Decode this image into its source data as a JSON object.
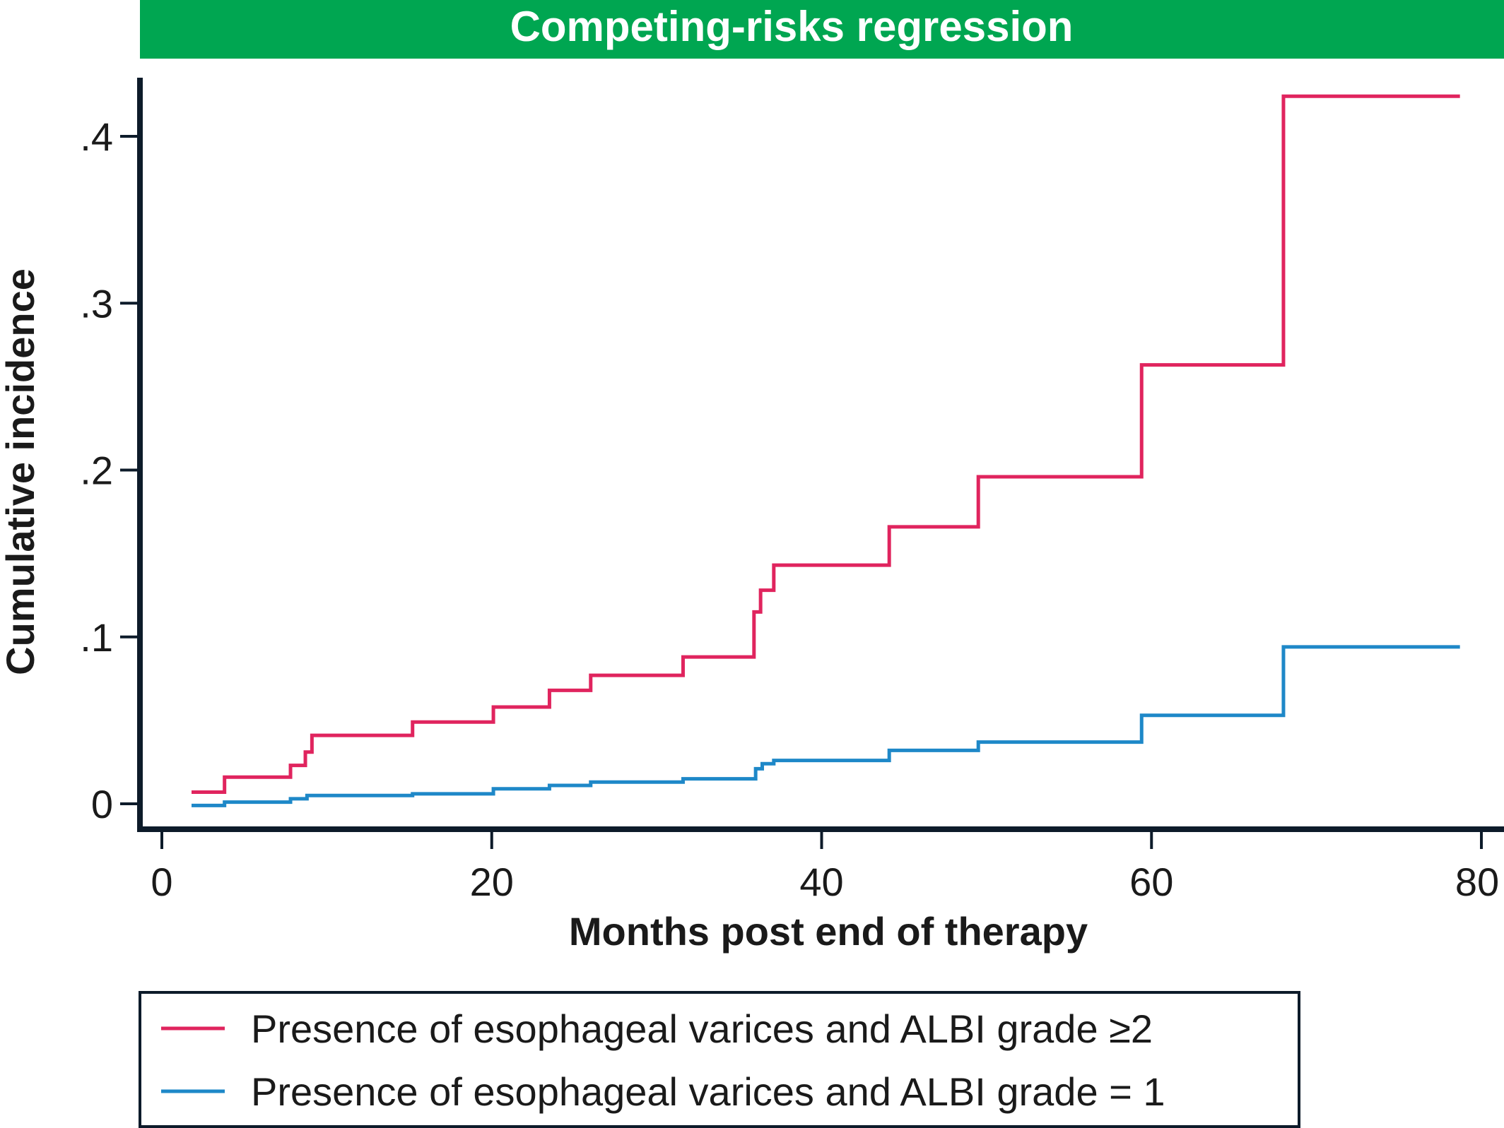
{
  "colors": {
    "banner": "#00a651",
    "axis": "#0d1b2a",
    "series_high": "#e0245e",
    "series_low": "#1e88c8"
  },
  "chart_data": {
    "type": "line",
    "title": "Competing-risks regression",
    "xlabel": "Months post end of therapy",
    "ylabel": "Cumulative incidence",
    "xlim": [
      0,
      80
    ],
    "ylim": [
      0,
      0.43
    ],
    "x_ticks": [
      0,
      20,
      40,
      60,
      80
    ],
    "x_tick_labels": [
      "0",
      "20",
      "40",
      "60",
      "80"
    ],
    "y_ticks": [
      0,
      0.1,
      0.2,
      0.3,
      0.4
    ],
    "y_tick_labels": [
      "0",
      ".1",
      ".2",
      ".3",
      ".4"
    ],
    "step": true,
    "legend_position": "bottom",
    "series": [
      {
        "name": "Presence of esophageal varices and ALBI grade ≥2",
        "color": "#e0245e",
        "x": [
          1.8,
          3.8,
          7.8,
          8.7,
          9.1,
          15.2,
          20.1,
          23.5,
          26.0,
          31.6,
          35.9,
          36.3,
          37.1,
          44.1,
          49.5,
          59.4,
          68.0,
          78.7
        ],
        "y": [
          0.007,
          0.016,
          0.023,
          0.031,
          0.041,
          0.049,
          0.058,
          0.068,
          0.077,
          0.088,
          0.115,
          0.128,
          0.143,
          0.166,
          0.196,
          0.263,
          0.424,
          0.424
        ]
      },
      {
        "name": "Presence of esophageal varices and ALBI grade = 1",
        "color": "#1e88c8",
        "x": [
          1.8,
          3.8,
          7.8,
          8.8,
          15.2,
          20.1,
          23.5,
          26.0,
          31.6,
          36.0,
          36.4,
          37.1,
          44.1,
          49.5,
          59.4,
          68.0,
          78.7
        ],
        "y": [
          -0.001,
          0.001,
          0.003,
          0.005,
          0.006,
          0.009,
          0.011,
          0.013,
          0.015,
          0.021,
          0.024,
          0.026,
          0.032,
          0.037,
          0.053,
          0.094,
          0.094
        ]
      }
    ]
  }
}
